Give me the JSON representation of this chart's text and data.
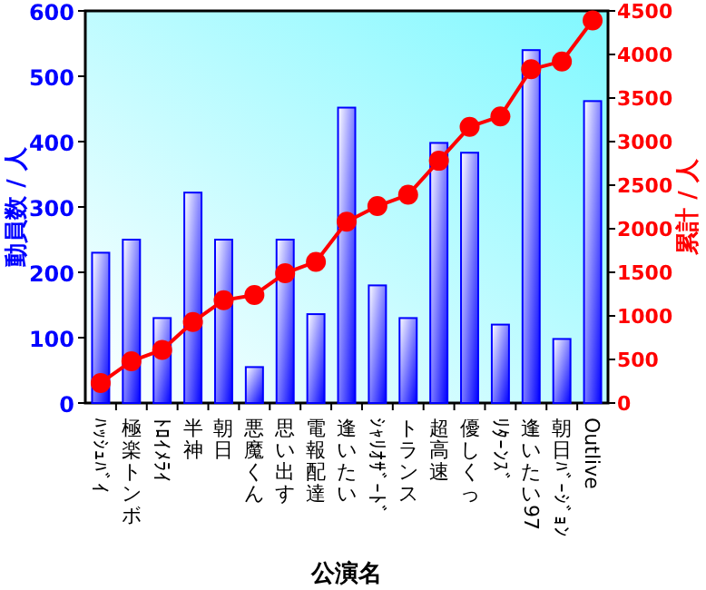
{
  "chart_data": {
    "type": "bar",
    "xlabel": "公演名",
    "ylabel": "動員数 / 人",
    "y2label": "累計 / 人",
    "categories": [
      "ﾊｯｼｭﾊﾞｲ",
      "極楽トンボ",
      "ﾄﾛｲﾒﾗｲ",
      "半神",
      "朝日",
      "悪魔くん",
      "思い出す",
      "電報配達",
      "逢いたい",
      "ｼｬﾘｵｻﾞｰﾄﾞ",
      "トランス",
      "超高速",
      "優しくっ",
      "ﾘﾀｰﾝｽﾞ",
      "逢いたい97",
      "朝日ﾊﾞｰｼﾞｮﾝ",
      "Outlive"
    ],
    "series": [
      {
        "color": "#0000ff",
        "values": [
          230,
          250,
          130,
          322,
          250,
          55,
          250,
          136,
          452,
          180,
          130,
          398,
          383,
          120,
          540,
          98,
          462
        ]
      },
      {
        "type": "line",
        "axis": "y2",
        "color": "#ff0000",
        "values": [
          230,
          480,
          610,
          930,
          1180,
          1240,
          1490,
          1620,
          2080,
          2260,
          2390,
          2780,
          3170,
          3290,
          3830,
          3920,
          4390
        ]
      }
    ],
    "ylim": [
      0,
      600
    ],
    "yticks": [
      0,
      100,
      200,
      300,
      400,
      500,
      600
    ],
    "y2lim": [
      0,
      4500
    ],
    "y2ticks": [
      0,
      500,
      1000,
      1500,
      2000,
      2500,
      3000,
      3500,
      4000,
      4500
    ],
    "marker": "circle"
  }
}
